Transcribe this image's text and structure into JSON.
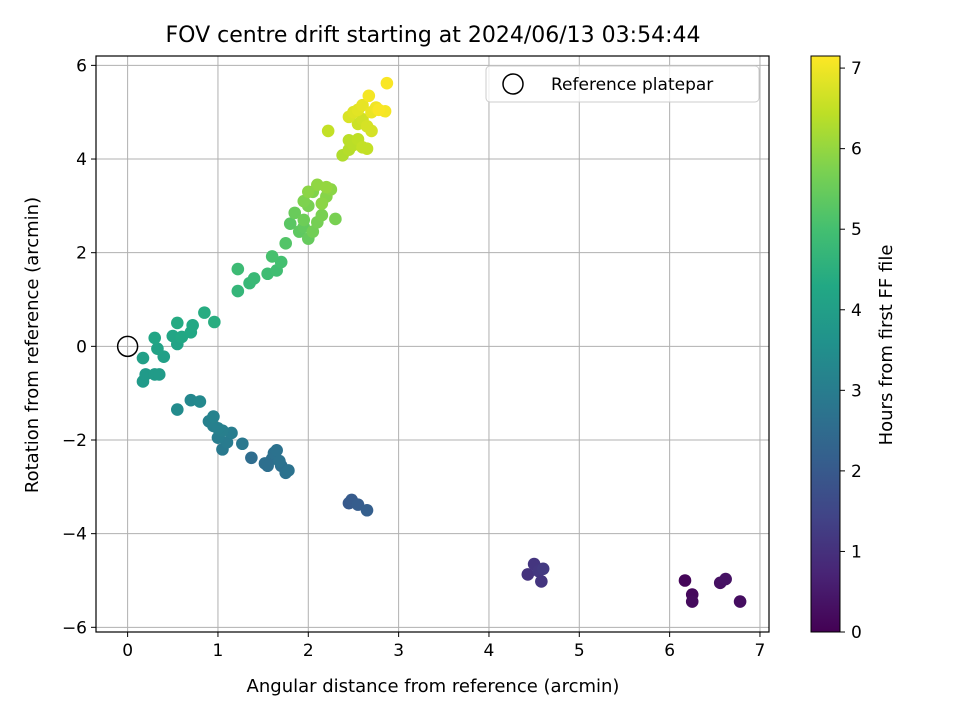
{
  "chart_data": {
    "type": "scatter",
    "title": "FOV centre drift starting at 2024/06/13 03:54:44",
    "xlabel": "Angular distance from reference (arcmin)",
    "ylabel": "Rotation from reference (arcmin)",
    "xlim": [
      -0.35,
      7.1
    ],
    "ylim": [
      -6.1,
      6.2
    ],
    "xticks": [
      0,
      1,
      2,
      3,
      4,
      5,
      6,
      7
    ],
    "yticks": [
      -6,
      -4,
      -2,
      0,
      2,
      4,
      6
    ],
    "grid": true,
    "legend": {
      "placement": "top-right",
      "entries": [
        "Reference platepar"
      ]
    },
    "reference_point": {
      "x": 0,
      "y": 0
    },
    "colorbar": {
      "label": "Hours from first FF file",
      "range": [
        0,
        7.15
      ],
      "ticks": [
        0,
        1,
        2,
        3,
        4,
        5,
        6,
        7
      ],
      "colormap": "viridis"
    },
    "points": [
      [
        6.17,
        -5.0,
        0.1
      ],
      [
        6.25,
        -5.3,
        0.15
      ],
      [
        6.25,
        -5.45,
        0.2
      ],
      [
        6.56,
        -5.05,
        0.3
      ],
      [
        6.62,
        -4.97,
        0.35
      ],
      [
        6.78,
        -5.45,
        0.25
      ],
      [
        4.43,
        -4.87,
        1.05
      ],
      [
        4.5,
        -4.65,
        1.1
      ],
      [
        4.55,
        -4.8,
        1.15
      ],
      [
        4.6,
        -4.75,
        1.2
      ],
      [
        4.58,
        -5.02,
        1.1
      ],
      [
        2.45,
        -3.35,
        2.0
      ],
      [
        2.48,
        -3.28,
        2.05
      ],
      [
        2.55,
        -3.38,
        2.1
      ],
      [
        2.65,
        -3.5,
        2.15
      ],
      [
        1.37,
        -2.38,
        2.55
      ],
      [
        1.52,
        -2.5,
        2.6
      ],
      [
        1.6,
        -2.4,
        2.6
      ],
      [
        1.62,
        -2.28,
        2.65
      ],
      [
        1.65,
        -2.22,
        2.7
      ],
      [
        1.7,
        -2.55,
        2.6
      ],
      [
        1.75,
        -2.7,
        2.65
      ],
      [
        1.78,
        -2.65,
        2.7
      ],
      [
        1.55,
        -2.55,
        2.6
      ],
      [
        1.68,
        -2.45,
        2.7
      ],
      [
        1.27,
        -2.08,
        2.85
      ],
      [
        1.05,
        -2.2,
        2.9
      ],
      [
        1.1,
        -2.05,
        2.95
      ],
      [
        1.15,
        -1.85,
        3.0
      ],
      [
        1.0,
        -1.95,
        3.0
      ],
      [
        0.95,
        -1.7,
        3.05
      ],
      [
        1.05,
        -1.8,
        3.05
      ],
      [
        0.9,
        -1.6,
        3.1
      ],
      [
        0.95,
        -1.5,
        3.15
      ],
      [
        1.0,
        -1.75,
        3.1
      ],
      [
        0.7,
        -1.15,
        3.3
      ],
      [
        0.8,
        -1.18,
        3.35
      ],
      [
        0.55,
        -1.35,
        3.4
      ],
      [
        0.17,
        -0.75,
        3.85
      ],
      [
        0.2,
        -0.6,
        3.85
      ],
      [
        0.3,
        -0.6,
        3.9
      ],
      [
        0.35,
        -0.6,
        3.9
      ],
      [
        0.17,
        -0.25,
        4.0
      ],
      [
        0.4,
        -0.22,
        4.05
      ],
      [
        0.33,
        -0.05,
        4.1
      ],
      [
        0.55,
        0.05,
        4.15
      ],
      [
        0.3,
        0.18,
        4.2
      ],
      [
        0.5,
        0.22,
        4.2
      ],
      [
        0.6,
        0.2,
        4.25
      ],
      [
        0.7,
        0.3,
        4.3
      ],
      [
        0.72,
        0.45,
        4.3
      ],
      [
        0.55,
        0.5,
        4.35
      ],
      [
        0.85,
        0.72,
        4.4
      ],
      [
        0.96,
        0.52,
        4.45
      ],
      [
        1.22,
        1.18,
        4.7
      ],
      [
        1.35,
        1.35,
        4.75
      ],
      [
        1.4,
        1.45,
        4.8
      ],
      [
        1.22,
        1.65,
        4.85
      ],
      [
        1.55,
        1.55,
        4.9
      ],
      [
        1.65,
        1.62,
        4.95
      ],
      [
        1.7,
        1.8,
        5.0
      ],
      [
        1.6,
        1.92,
        5.05
      ],
      [
        1.75,
        2.2,
        5.2
      ],
      [
        1.8,
        2.62,
        5.3
      ],
      [
        1.9,
        2.45,
        5.35
      ],
      [
        1.95,
        2.55,
        5.4
      ],
      [
        2.0,
        2.3,
        5.45
      ],
      [
        1.85,
        2.85,
        5.5
      ],
      [
        1.95,
        2.7,
        5.55
      ],
      [
        2.05,
        2.45,
        5.6
      ],
      [
        2.1,
        2.65,
        5.65
      ],
      [
        2.15,
        2.8,
        5.7
      ],
      [
        2.0,
        3.0,
        5.7
      ],
      [
        1.95,
        3.1,
        5.75
      ],
      [
        2.05,
        3.3,
        5.8
      ],
      [
        2.2,
        3.2,
        5.85
      ],
      [
        2.25,
        3.35,
        5.9
      ],
      [
        2.15,
        3.05,
        5.9
      ],
      [
        2.3,
        2.72,
        5.7
      ],
      [
        2.1,
        3.45,
        5.95
      ],
      [
        2.0,
        3.3,
        5.9
      ],
      [
        2.2,
        3.4,
        6.0
      ],
      [
        2.22,
        4.6,
        6.5
      ],
      [
        2.38,
        4.08,
        6.3
      ],
      [
        2.45,
        4.2,
        6.35
      ],
      [
        2.5,
        4.3,
        6.4
      ],
      [
        2.45,
        4.4,
        6.4
      ],
      [
        2.55,
        4.42,
        6.45
      ],
      [
        2.6,
        4.25,
        6.5
      ],
      [
        2.65,
        4.22,
        6.5
      ],
      [
        2.55,
        4.75,
        6.6
      ],
      [
        2.6,
        4.85,
        6.65
      ],
      [
        2.65,
        4.7,
        6.7
      ],
      [
        2.7,
        4.6,
        6.7
      ],
      [
        2.45,
        4.9,
        6.75
      ],
      [
        2.5,
        5.0,
        6.8
      ],
      [
        2.55,
        5.05,
        6.85
      ],
      [
        2.6,
        5.15,
        6.9
      ],
      [
        2.7,
        5.0,
        6.95
      ],
      [
        2.75,
        5.1,
        7.0
      ],
      [
        2.67,
        5.35,
        7.05
      ],
      [
        2.85,
        5.02,
        7.05
      ],
      [
        2.87,
        5.62,
        7.1
      ],
      [
        2.78,
        5.05,
        7.1
      ]
    ]
  }
}
